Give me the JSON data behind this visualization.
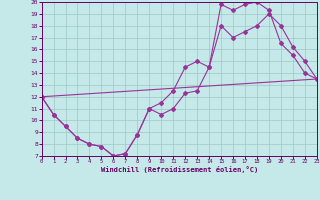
{
  "bg_color": "#c5e8e8",
  "line_color": "#993399",
  "grid_color": "#9dc8c8",
  "xlabel": "Windchill (Refroidissement éolien,°C)",
  "xlim": [
    0,
    23
  ],
  "ylim": [
    7,
    20
  ],
  "xticks": [
    0,
    1,
    2,
    3,
    4,
    5,
    6,
    7,
    8,
    9,
    10,
    11,
    12,
    13,
    14,
    15,
    16,
    17,
    18,
    19,
    20,
    21,
    22,
    23
  ],
  "yticks": [
    7,
    8,
    9,
    10,
    11,
    12,
    13,
    14,
    15,
    16,
    17,
    18,
    19,
    20
  ],
  "curve1_x": [
    0,
    1,
    2,
    3,
    4,
    5,
    6,
    7,
    8,
    9,
    10,
    11,
    12,
    13,
    14,
    15,
    16,
    17,
    18,
    19,
    20,
    21,
    22,
    23
  ],
  "curve1_y": [
    12,
    10.5,
    9.5,
    8.5,
    8.0,
    7.8,
    7.0,
    7.2,
    8.8,
    11.0,
    11.5,
    12.5,
    14.5,
    15.0,
    14.5,
    19.8,
    19.3,
    19.8,
    20.0,
    19.3,
    16.5,
    15.5,
    14.0,
    13.5
  ],
  "curve2_x": [
    0,
    1,
    2,
    3,
    4,
    5,
    6,
    7,
    8,
    9,
    10,
    11,
    12,
    13,
    14,
    15,
    16,
    17,
    18,
    19,
    20,
    21,
    22,
    23
  ],
  "curve2_y": [
    12,
    10.5,
    9.5,
    8.5,
    8.0,
    7.8,
    7.0,
    7.2,
    8.8,
    11.0,
    10.5,
    11.0,
    12.3,
    12.5,
    14.5,
    18.0,
    17.0,
    17.5,
    18.0,
    19.0,
    18.0,
    16.2,
    15.0,
    13.5
  ],
  "curve3_x": [
    0,
    23
  ],
  "curve3_y": [
    12,
    13.5
  ]
}
